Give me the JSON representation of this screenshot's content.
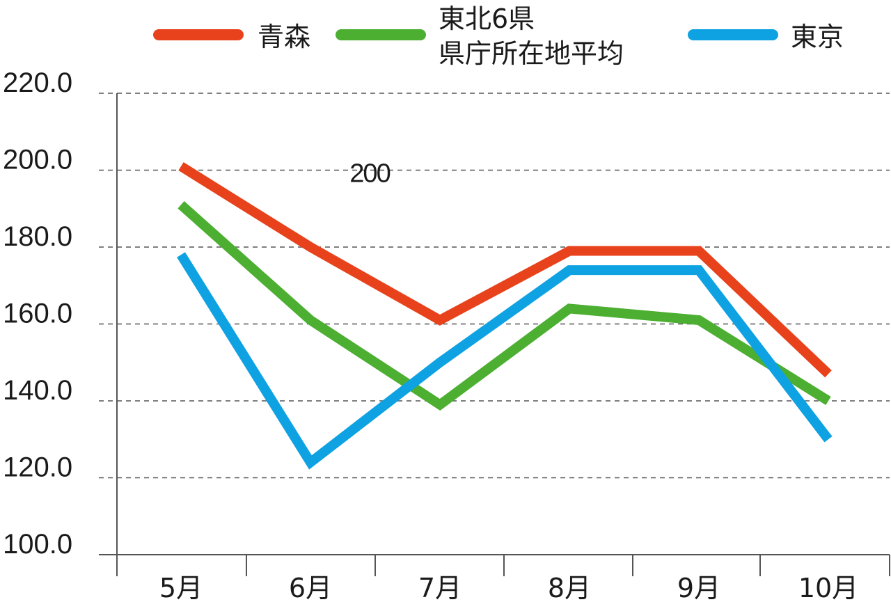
{
  "chart_data": {
    "type": "line",
    "title": "",
    "xlabel": "",
    "ylabel": "",
    "categories": [
      "5月",
      "6月",
      "7月",
      "8月",
      "9月",
      "10月"
    ],
    "y_ticks": [
      "100.0",
      "120.0",
      "140.0",
      "160.0",
      "180.0",
      "200.0",
      "220.0"
    ],
    "ylim": [
      100,
      220
    ],
    "grid": "horizontal-dashed",
    "legend_position": "top",
    "series": [
      {
        "name": "青森",
        "color": "#e8421c",
        "values": [
          201,
          180,
          161,
          179,
          179,
          147
        ]
      },
      {
        "name": "東北6県\n県庁所在地平均",
        "name_lines": [
          "東北6県",
          "県庁所在地平均"
        ],
        "color": "#4caf32",
        "values": [
          191,
          161,
          139,
          164,
          161,
          140
        ]
      },
      {
        "name": "東京",
        "color": "#0fa2e2",
        "values": [
          178,
          124,
          150,
          174,
          174,
          130
        ]
      }
    ],
    "annotations": [
      {
        "text": "200",
        "x_between": [
          "6月",
          "7月"
        ],
        "y": 200
      }
    ]
  }
}
